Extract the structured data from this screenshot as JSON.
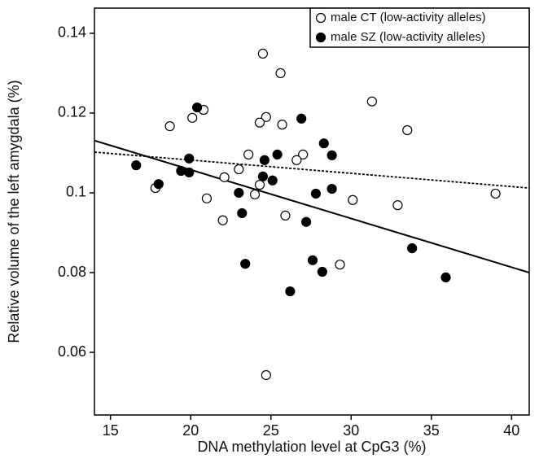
{
  "chart_data": {
    "type": "scatter",
    "x_label": "DNA methylation level at CpG3 (%)",
    "y_label": "Relative volume of the left amygdala (%)",
    "xlim": [
      14,
      41.1
    ],
    "ylim": [
      0.0443,
      0.1463
    ],
    "xticks": [
      15,
      20,
      25,
      30,
      35,
      40
    ],
    "yticks": [
      0.06,
      0.08,
      0.1,
      0.12,
      0.14
    ],
    "legend": "upper right",
    "series": [
      {
        "name": "male CT (low-activity alleles)",
        "color": "#000000",
        "marker": "open",
        "x": [
          24.5,
          25.6,
          31.3,
          18.7,
          20.8,
          20.1,
          24.7,
          24.3,
          25.7,
          33.5,
          23.6,
          27.0,
          26.6,
          23.0,
          22.1,
          24.3,
          24.0,
          17.8,
          21.0,
          30.1,
          32.9,
          39.0,
          25.9,
          22.0,
          29.3,
          24.7
        ],
        "values": [
          0.1349,
          0.13,
          0.1229,
          0.1167,
          0.1208,
          0.1188,
          0.119,
          0.1176,
          0.1171,
          0.1157,
          0.1096,
          0.1096,
          0.1082,
          0.1059,
          0.1039,
          0.102,
          0.0996,
          0.1012,
          0.0986,
          0.0982,
          0.0969,
          0.0998,
          0.0943,
          0.0931,
          0.082,
          0.0543
        ]
      },
      {
        "name": "male SZ (low-activity alleles)",
        "color": "#000000",
        "marker": "filled",
        "x": [
          16.6,
          18.0,
          20.4,
          19.9,
          19.4,
          19.9,
          26.9,
          28.3,
          25.4,
          28.8,
          24.6,
          24.5,
          25.1,
          23.0,
          28.8,
          27.8,
          23.2,
          27.2,
          23.4,
          27.6,
          28.2,
          33.8,
          26.2,
          35.9
        ],
        "values": [
          0.1069,
          0.1022,
          0.1214,
          0.1086,
          0.1055,
          0.1051,
          0.1186,
          0.1124,
          0.1096,
          0.1094,
          0.1082,
          0.1041,
          0.1031,
          0.1,
          0.101,
          0.0998,
          0.0949,
          0.0927,
          0.0822,
          0.0831,
          0.0802,
          0.0861,
          0.0753,
          0.0788
        ]
      }
    ],
    "trend_lines": [
      {
        "style": "dashed",
        "color": "#000000",
        "x": [
          14,
          41.1
        ],
        "values": [
          0.1102,
          0.1012
        ]
      },
      {
        "style": "solid",
        "color": "#000000",
        "x": [
          14,
          41.1
        ],
        "values": [
          0.1131,
          0.08
        ]
      }
    ]
  }
}
